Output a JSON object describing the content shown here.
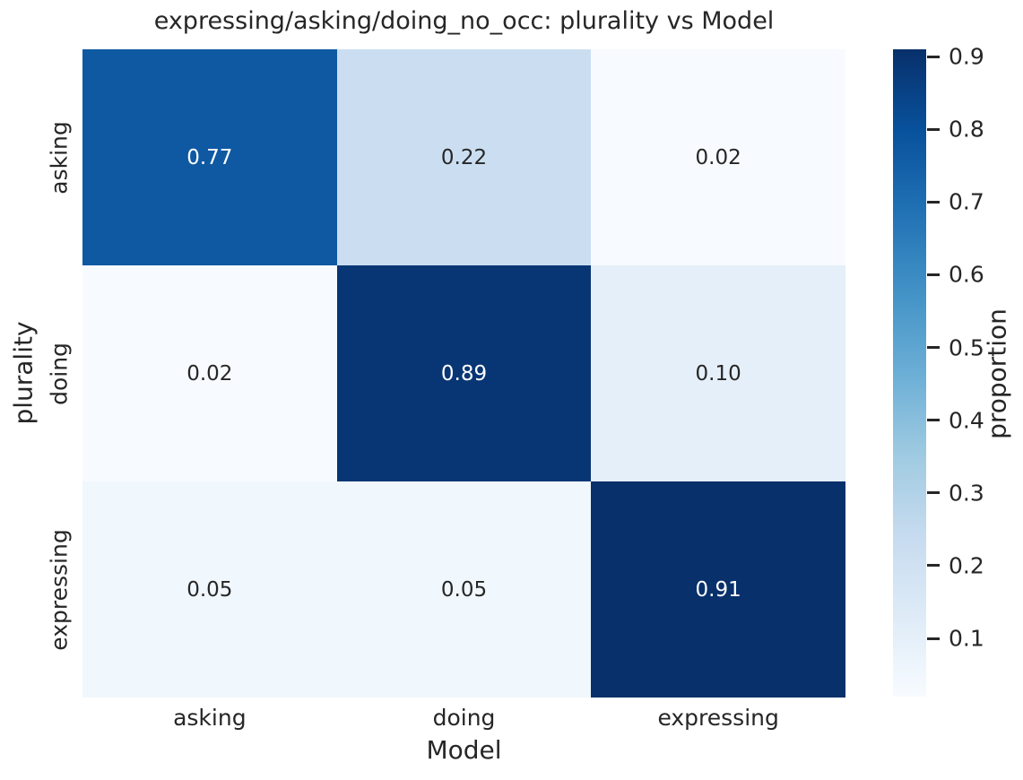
{
  "chart_data": {
    "type": "heatmap",
    "title": "expressing/asking/doing_no_occ: plurality vs Model",
    "xlabel": "Model",
    "ylabel": "plurality",
    "x_categories": [
      "asking",
      "doing",
      "expressing"
    ],
    "y_categories": [
      "asking",
      "doing",
      "expressing"
    ],
    "series": [
      {
        "name": "asking",
        "values": [
          0.77,
          0.22,
          0.02
        ]
      },
      {
        "name": "doing",
        "values": [
          0.02,
          0.89,
          0.1
        ]
      },
      {
        "name": "expressing",
        "values": [
          0.05,
          0.05,
          0.91
        ]
      }
    ],
    "cell_labels": [
      [
        "0.77",
        "0.22",
        "0.02"
      ],
      [
        "0.02",
        "0.89",
        "0.10"
      ],
      [
        "0.05",
        "0.05",
        "0.91"
      ]
    ],
    "colorbar": {
      "label": "proportion",
      "tick_labels": [
        "0.9",
        "0.8",
        "0.7",
        "0.6",
        "0.5",
        "0.4",
        "0.3",
        "0.2",
        "0.1"
      ],
      "tick_values": [
        0.9,
        0.8,
        0.7,
        0.6,
        0.5,
        0.4,
        0.3,
        0.2,
        0.1
      ],
      "vmin": 0.02,
      "vmax": 0.91,
      "position": "right"
    },
    "colormap": {
      "name": "Blues",
      "stops": [
        "#f7fbff",
        "#deebf7",
        "#c6dbef",
        "#9ecae1",
        "#6baed6",
        "#4292c6",
        "#2171b5",
        "#08519c",
        "#08306b"
      ]
    },
    "colors": {
      "text": "#262626",
      "annotation_on_dark": "#ffffff",
      "annotation_on_light": "#262626",
      "background": "#ffffff"
    },
    "grid": false,
    "legend_position": "none"
  }
}
